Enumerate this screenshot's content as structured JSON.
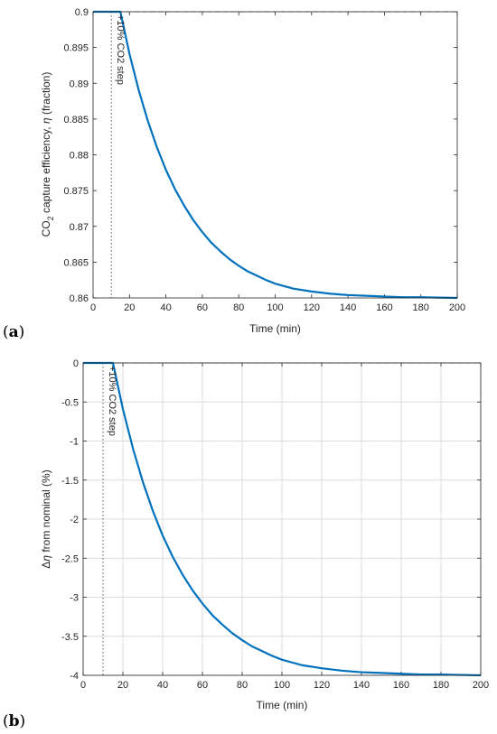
{
  "chart_data": [
    {
      "panel": "(a)",
      "type": "line",
      "title": "",
      "xlabel": "Time (min)",
      "ylabel_main": "CO",
      "ylabel_sub": "2",
      "ylabel_rest": " capture efficiency, ",
      "ylabel_symbol": "η",
      "ylabel_unit": " (fraction)",
      "xlim": [
        0,
        200
      ],
      "ylim": [
        0.86,
        0.9
      ],
      "xticks": [
        0,
        20,
        40,
        60,
        80,
        100,
        120,
        140,
        160,
        180,
        200
      ],
      "yticks": [
        0.86,
        0.865,
        0.87,
        0.875,
        0.88,
        0.885,
        0.89,
        0.895,
        0.9
      ],
      "ytick_labels": [
        "0.86",
        "0.865",
        "0.87",
        "0.875",
        "0.88",
        "0.885",
        "0.89",
        "0.895",
        "0.9"
      ],
      "grid": false,
      "series": [
        {
          "color": "#0072BD",
          "x": [
            0,
            5,
            10,
            15,
            20,
            25,
            30,
            35,
            40,
            45,
            50,
            55,
            60,
            65,
            70,
            75,
            80,
            85,
            90,
            95,
            100,
            110,
            120,
            130,
            140,
            150,
            160,
            170,
            180,
            190,
            200
          ],
          "y": [
            0.9,
            0.9,
            0.9,
            0.9,
            0.8941,
            0.8891,
            0.8848,
            0.8811,
            0.8779,
            0.8752,
            0.8729,
            0.8709,
            0.8692,
            0.8677,
            0.8665,
            0.8654,
            0.8645,
            0.8637,
            0.8631,
            0.8625,
            0.862,
            0.8613,
            0.8609,
            0.8606,
            0.8604,
            0.8603,
            0.8602,
            0.8601,
            0.8601,
            0.86005,
            0.86
          ]
        }
      ],
      "reference_line": {
        "y": 0.9,
        "style": "dashed"
      },
      "step_marker": {
        "x": 10,
        "label": "+10% CO2 step"
      }
    },
    {
      "panel": "(b)",
      "type": "line",
      "title": "",
      "xlabel": "Time (min)",
      "ylabel_prefix": "Δ",
      "ylabel_symbol": "η",
      "ylabel_rest": " from nominal (%)",
      "xlim": [
        0,
        200
      ],
      "ylim": [
        -4,
        0
      ],
      "xticks": [
        0,
        20,
        40,
        60,
        80,
        100,
        120,
        140,
        160,
        180,
        200
      ],
      "yticks": [
        -4,
        -3.5,
        -3,
        -2.5,
        -2,
        -1.5,
        -1,
        -0.5,
        0
      ],
      "ytick_labels": [
        "-4",
        "-3.5",
        "-3",
        "-2.5",
        "-2",
        "-1.5",
        "-1",
        "-0.5",
        "0"
      ],
      "grid": true,
      "series": [
        {
          "color": "#0072BD",
          "x": [
            0,
            5,
            10,
            15,
            20,
            25,
            30,
            35,
            40,
            45,
            50,
            55,
            60,
            65,
            70,
            75,
            80,
            85,
            90,
            95,
            100,
            110,
            120,
            130,
            140,
            150,
            160,
            170,
            180,
            190,
            200
          ],
          "y": [
            0,
            0,
            0,
            0,
            -0.59,
            -1.09,
            -1.52,
            -1.89,
            -2.21,
            -2.48,
            -2.71,
            -2.91,
            -3.08,
            -3.23,
            -3.35,
            -3.46,
            -3.55,
            -3.63,
            -3.69,
            -3.75,
            -3.8,
            -3.87,
            -3.91,
            -3.94,
            -3.96,
            -3.97,
            -3.98,
            -3.99,
            -3.99,
            -3.995,
            -4.0
          ]
        }
      ],
      "reference_line": {
        "y": 0,
        "style": "dashed"
      },
      "step_marker": {
        "x": 10,
        "label": "+10% CO2 step"
      }
    }
  ]
}
